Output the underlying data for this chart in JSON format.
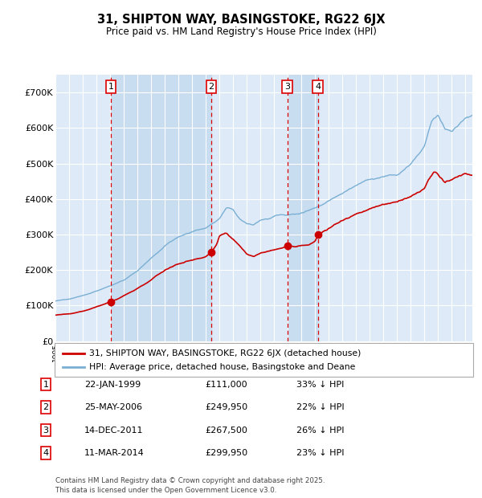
{
  "title": "31, SHIPTON WAY, BASINGSTOKE, RG22 6JX",
  "subtitle": "Price paid vs. HM Land Registry's House Price Index (HPI)",
  "background_color": "#ffffff",
  "plot_bg_color": "#deeaf7",
  "legend_label_red": "31, SHIPTON WAY, BASINGSTOKE, RG22 6JX (detached house)",
  "legend_label_blue": "HPI: Average price, detached house, Basingstoke and Deane",
  "footer": "Contains HM Land Registry data © Crown copyright and database right 2025.\nThis data is licensed under the Open Government Licence v3.0.",
  "transactions": [
    {
      "num": 1,
      "date": "22-JAN-1999",
      "price": 111000,
      "pct": "33% ↓ HPI",
      "year": 1999.06
    },
    {
      "num": 2,
      "date": "25-MAY-2006",
      "price": 249950,
      "pct": "22% ↓ HPI",
      "year": 2006.4
    },
    {
      "num": 3,
      "date": "14-DEC-2011",
      "price": 267500,
      "pct": "26% ↓ HPI",
      "year": 2011.96
    },
    {
      "num": 4,
      "date": "11-MAR-2014",
      "price": 299950,
      "pct": "23% ↓ HPI",
      "year": 2014.19
    }
  ],
  "red_color": "#cc0000",
  "blue_color": "#7aafd4",
  "dashed_color": "#dd0000",
  "shade_color": "#c8ddf0",
  "ylim": [
    0,
    750000
  ],
  "yticks": [
    0,
    100000,
    200000,
    300000,
    400000,
    500000,
    600000,
    700000
  ],
  "ytick_labels": [
    "£0",
    "£100K",
    "£200K",
    "£300K",
    "£400K",
    "£500K",
    "£600K",
    "£700K"
  ],
  "xstart": 1995.0,
  "xend": 2025.5,
  "hpi_keypoints": [
    [
      1995.0,
      113000
    ],
    [
      1996.0,
      118000
    ],
    [
      1997.0,
      128000
    ],
    [
      1998.0,
      142000
    ],
    [
      1999.0,
      155000
    ],
    [
      2000.0,
      172000
    ],
    [
      2001.0,
      198000
    ],
    [
      2002.0,
      232000
    ],
    [
      2003.0,
      268000
    ],
    [
      2004.0,
      295000
    ],
    [
      2005.0,
      308000
    ],
    [
      2006.0,
      318000
    ],
    [
      2007.0,
      345000
    ],
    [
      2007.5,
      375000
    ],
    [
      2008.0,
      368000
    ],
    [
      2008.5,
      345000
    ],
    [
      2009.0,
      330000
    ],
    [
      2009.5,
      328000
    ],
    [
      2010.0,
      340000
    ],
    [
      2010.5,
      345000
    ],
    [
      2011.0,
      352000
    ],
    [
      2011.5,
      355000
    ],
    [
      2012.0,
      355000
    ],
    [
      2012.5,
      358000
    ],
    [
      2013.0,
      362000
    ],
    [
      2013.5,
      368000
    ],
    [
      2014.0,
      375000
    ],
    [
      2014.5,
      385000
    ],
    [
      2015.0,
      395000
    ],
    [
      2016.0,
      418000
    ],
    [
      2017.0,
      440000
    ],
    [
      2018.0,
      455000
    ],
    [
      2019.0,
      462000
    ],
    [
      2020.0,
      468000
    ],
    [
      2021.0,
      498000
    ],
    [
      2022.0,
      548000
    ],
    [
      2022.5,
      618000
    ],
    [
      2023.0,
      638000
    ],
    [
      2023.5,
      598000
    ],
    [
      2024.0,
      590000
    ],
    [
      2024.5,
      608000
    ],
    [
      2025.0,
      625000
    ],
    [
      2025.5,
      635000
    ]
  ],
  "red_keypoints": [
    [
      1995.0,
      73000
    ],
    [
      1996.0,
      77000
    ],
    [
      1997.0,
      84000
    ],
    [
      1998.0,
      96000
    ],
    [
      1999.0,
      111000
    ],
    [
      1999.5,
      118000
    ],
    [
      2000.0,
      128000
    ],
    [
      2001.0,
      148000
    ],
    [
      2002.0,
      172000
    ],
    [
      2003.0,
      200000
    ],
    [
      2004.0,
      218000
    ],
    [
      2005.0,
      228000
    ],
    [
      2006.0,
      238000
    ],
    [
      2006.4,
      250000
    ],
    [
      2006.8,
      272000
    ],
    [
      2007.0,
      295000
    ],
    [
      2007.5,
      302000
    ],
    [
      2008.0,
      288000
    ],
    [
      2008.5,
      268000
    ],
    [
      2009.0,
      245000
    ],
    [
      2009.5,
      238000
    ],
    [
      2010.0,
      248000
    ],
    [
      2010.5,
      252000
    ],
    [
      2011.0,
      258000
    ],
    [
      2011.5,
      262000
    ],
    [
      2011.96,
      267500
    ],
    [
      2012.0,
      268000
    ],
    [
      2012.5,
      265000
    ],
    [
      2013.0,
      268000
    ],
    [
      2013.5,
      272000
    ],
    [
      2014.0,
      282000
    ],
    [
      2014.19,
      299950
    ],
    [
      2014.5,
      305000
    ],
    [
      2015.0,
      318000
    ],
    [
      2016.0,
      340000
    ],
    [
      2017.0,
      358000
    ],
    [
      2018.0,
      372000
    ],
    [
      2019.0,
      385000
    ],
    [
      2020.0,
      392000
    ],
    [
      2021.0,
      408000
    ],
    [
      2022.0,
      428000
    ],
    [
      2022.3,
      455000
    ],
    [
      2022.7,
      478000
    ],
    [
      2023.0,
      468000
    ],
    [
      2023.5,
      445000
    ],
    [
      2024.0,
      452000
    ],
    [
      2024.5,
      465000
    ],
    [
      2025.0,
      472000
    ],
    [
      2025.5,
      468000
    ]
  ]
}
